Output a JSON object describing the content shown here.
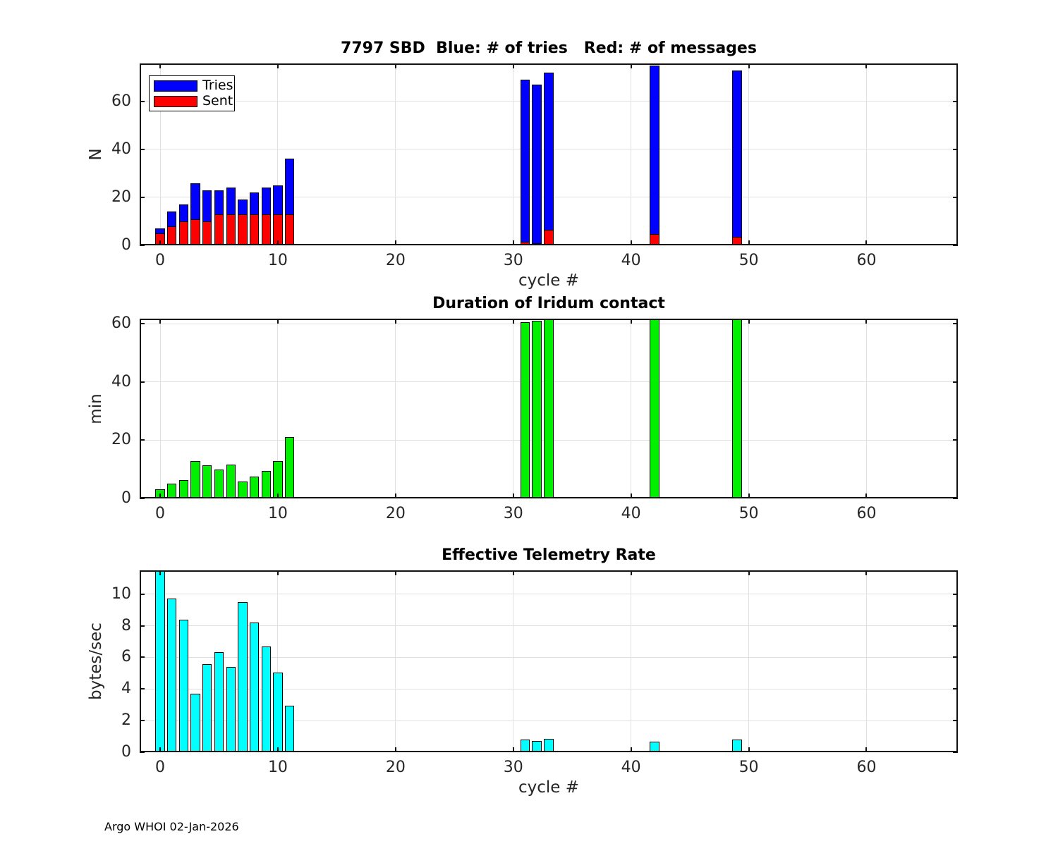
{
  "footer": "Argo WHOI 02-Jan-2026",
  "colors": {
    "tries_blue": "#0000ff",
    "sent_red": "#ff0000",
    "duration_green": "#00f000",
    "rate_cyan": "#00ffff",
    "grid": "#e0e0e0",
    "axis": "#111111",
    "tick_text": "#262626"
  },
  "chart_data": [
    {
      "type": "bar",
      "title": "7797 SBD  Blue: # of tries   Red: # of messages",
      "xlabel": "cycle #",
      "ylabel": "N",
      "xlim": [
        -1.74,
        67.76
      ],
      "ylim": [
        0,
        75.8
      ],
      "xticks": [
        0,
        10,
        20,
        30,
        40,
        50,
        60
      ],
      "yticks": [
        0,
        20,
        40,
        60
      ],
      "bar_width": 0.8,
      "grid": true,
      "legend": {
        "position": "top-left",
        "entries": [
          {
            "label": "Tries",
            "color": "#0000ff"
          },
          {
            "label": "Sent",
            "color": "#ff0000"
          }
        ]
      },
      "x": [
        0,
        1,
        2,
        3,
        4,
        5,
        6,
        7,
        8,
        9,
        10,
        11,
        31,
        32,
        33,
        42,
        49
      ],
      "series": [
        {
          "name": "Tries",
          "color": "#0000ff",
          "values": [
            7,
            14,
            17,
            26,
            23,
            23,
            24,
            19,
            22,
            24,
            25,
            36,
            69,
            67,
            72,
            75,
            73
          ]
        },
        {
          "name": "Sent",
          "color": "#ff0000",
          "values": [
            5,
            8,
            10,
            11,
            10,
            13,
            13,
            13,
            13,
            13,
            13,
            13,
            1.6,
            0.8,
            6.6,
            4.6,
            3.5
          ]
        }
      ]
    },
    {
      "type": "bar",
      "title": "Duration of Iridum contact",
      "xlabel": "",
      "ylabel": "min",
      "xlim": [
        -1.74,
        67.76
      ],
      "ylim": [
        0,
        61.7
      ],
      "xticks": [
        0,
        10,
        20,
        30,
        40,
        50,
        60
      ],
      "yticks": [
        0,
        20,
        40,
        60
      ],
      "bar_width": 0.8,
      "grid": true,
      "x": [
        0,
        1,
        2,
        3,
        4,
        5,
        6,
        7,
        8,
        9,
        10,
        11,
        31,
        32,
        33,
        42,
        49
      ],
      "series": [
        {
          "name": "Duration",
          "color": "#00f000",
          "values": [
            3.1,
            5.0,
            6.2,
            12.9,
            11.4,
            9.9,
            11.6,
            5.9,
            7.6,
            9.4,
            12.9,
            21.0,
            60.6,
            61.0,
            61.4,
            61.7,
            61.5
          ]
        }
      ]
    },
    {
      "type": "bar",
      "title": "Effective Telemetry Rate",
      "xlabel": "cycle #",
      "ylabel": "bytes/sec",
      "xlim": [
        -1.74,
        67.76
      ],
      "ylim": [
        0,
        11.5
      ],
      "xticks": [
        0,
        10,
        20,
        30,
        40,
        50,
        60
      ],
      "yticks": [
        0,
        2,
        4,
        6,
        8,
        10
      ],
      "bar_width": 0.8,
      "grid": true,
      "x": [
        0,
        1,
        2,
        3,
        4,
        5,
        6,
        7,
        8,
        9,
        10,
        11,
        31,
        32,
        33,
        42,
        49
      ],
      "series": [
        {
          "name": "Rate",
          "color": "#00ffff",
          "values": [
            11.5,
            9.7,
            8.4,
            3.7,
            5.55,
            6.35,
            5.4,
            9.5,
            8.2,
            6.7,
            5.05,
            2.95,
            0.8,
            0.72,
            0.85,
            0.65,
            0.8
          ]
        }
      ]
    }
  ]
}
